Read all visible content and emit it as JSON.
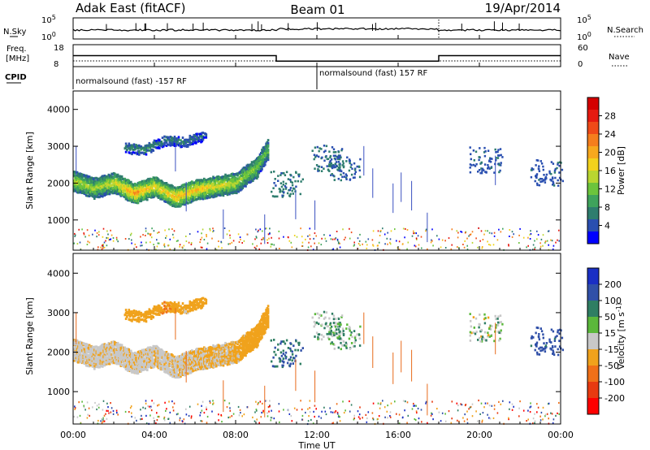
{
  "header": {
    "station": "Adak East (fitACF)",
    "beam": "Beam 01",
    "date": "19/Apr/2014"
  },
  "top_panels": {
    "nsky_label": "N.Sky",
    "nsearch_label": "N.Search",
    "n_ticks_left": [
      "10^5",
      "10^0"
    ],
    "n_ticks_right": [
      "10^5",
      "10^0"
    ],
    "freq_label": "Freq.",
    "freq_unit": "[MHz]",
    "freq_ticks": [
      "18",
      "8"
    ],
    "nave_label": "Nave",
    "nave_ticks": [
      "60",
      "0"
    ],
    "cpid_label": "CPID",
    "cpid_segments": [
      "normalsound (fast) -157 RF",
      "normalsound (fast) 157 RF"
    ]
  },
  "panels": {
    "power": {
      "ylabel": "Slant Range [km]",
      "yticks": [
        "4000",
        "3000",
        "2000",
        "1000"
      ],
      "colorbar_label": "Power [dB]",
      "colorbar_ticks": [
        "28",
        "24",
        "20",
        "16",
        "12",
        "8",
        "4"
      ],
      "colors": [
        "#0000ff",
        "#2a4fb0",
        "#2e7d6e",
        "#3fa35c",
        "#6cc43c",
        "#b9d630",
        "#f2d21c",
        "#f7a81d",
        "#f57e1d",
        "#ef4a18",
        "#e61a10",
        "#d40000"
      ]
    },
    "velocity": {
      "ylabel": "Slant Range [km]",
      "yticks": [
        "4000",
        "3000",
        "2000",
        "1000"
      ],
      "colorbar_label": "Velocity [m s^-1]",
      "colorbar_ticks": [
        "200",
        "100",
        "50",
        "15",
        "-15",
        "-50",
        "-100",
        "-200"
      ],
      "colors": [
        "#1a2fc4",
        "#3050a8",
        "#2f7e63",
        "#5bb83b",
        "#c8c8c8",
        "#f0a21c",
        "#f07018",
        "#e83a10",
        "#ff0000"
      ]
    }
  },
  "xaxis": {
    "ticks": [
      "00:00",
      "04:00",
      "08:00",
      "12:00",
      "16:00",
      "20:00",
      "00:00"
    ],
    "label": "Time UT"
  },
  "chart_data": {
    "type": "heatmap",
    "title": "Adak East (fitACF) Beam 01 19/Apr/2014",
    "xlabel": "Time UT",
    "ylabel": "Slant Range [km]",
    "x_range": [
      "00:00",
      "24:00"
    ],
    "ylim": [
      180,
      4500
    ],
    "grid": false,
    "freq_mhz": [
      {
        "from": "00:00",
        "to": "10:00",
        "value": 13
      },
      {
        "from": "10:00",
        "to": "18:00",
        "value": 10.5
      },
      {
        "from": "18:00",
        "to": "24:00",
        "value": 13
      }
    ],
    "cpid": [
      {
        "from": "00:00",
        "to": "12:00",
        "value": "normalsound (fast) -157 RF"
      },
      {
        "from": "12:00",
        "to": "24:00",
        "value": "normalsound (fast) 157 RF"
      }
    ],
    "main_echo_band": {
      "times_h": [
        0,
        1,
        2,
        3,
        4,
        5,
        6,
        7,
        8,
        9,
        9.6
      ],
      "range_km": [
        2100,
        1900,
        2050,
        1750,
        1950,
        1650,
        1850,
        1950,
        2050,
        2450,
        3000
      ],
      "power_db": [
        14,
        13,
        15,
        20,
        16,
        18,
        18,
        16,
        14,
        12,
        10
      ],
      "velocity_ms": [
        -10,
        -10,
        -8,
        -10,
        -10,
        -10,
        -15,
        -15,
        -20,
        -30,
        -40
      ]
    },
    "upper_echo_band": {
      "times_h": [
        2.5,
        3.5,
        4.5,
        5.5,
        6.5
      ],
      "range_km": [
        3000,
        2950,
        3200,
        3150,
        3350
      ],
      "power_db": [
        6,
        8,
        7,
        6,
        5
      ],
      "velocity_ms": [
        -40,
        -30,
        -50,
        -20,
        -40
      ]
    },
    "evening_echoes": {
      "times_h": [
        10.5,
        12.5,
        13.3,
        20.3,
        23.3
      ],
      "range_km": [
        2000,
        2700,
        2450,
        2650,
        2300
      ],
      "power_db": [
        6,
        5,
        5,
        4,
        4
      ],
      "velocity_ms": [
        70,
        20,
        30,
        10,
        100
      ]
    },
    "power_colorbar": {
      "label": "Power [dB]",
      "range": [
        0,
        30
      ]
    },
    "velocity_colorbar": {
      "label": "Velocity [m s^-1]",
      "range": [
        -250,
        250
      ]
    }
  }
}
